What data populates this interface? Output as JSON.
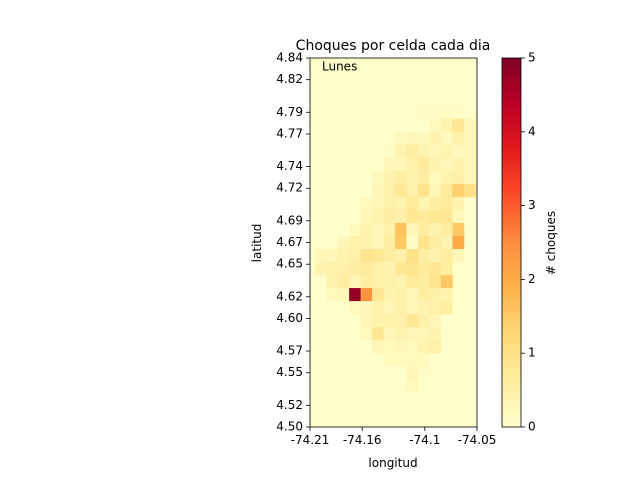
{
  "colors": {
    "background": "#ffffff",
    "colormap": "YlOrRd",
    "colormap_stops": [
      "#ffffcc",
      "#ffeda0",
      "#fed976",
      "#feb24c",
      "#fd8d3c",
      "#fc4e2a",
      "#e31a1c",
      "#bd0026",
      "#800026"
    ]
  },
  "chart_data": {
    "type": "heatmap",
    "title": "Choques por celda cada dia",
    "annotation": "Lunes",
    "xlabel": "longitud",
    "ylabel": "latitud",
    "colorbar_label": "# choques",
    "xlim": [
      -74.21,
      -74.05
    ],
    "ylim": [
      4.5,
      4.84
    ],
    "clim": [
      0,
      5
    ],
    "xtick_values": [
      -74.21,
      -74.16,
      -74.1,
      -74.05
    ],
    "xtick_labels": [
      "-74.21",
      "-74.16",
      "-74.1",
      "-74.05"
    ],
    "ytick_values": [
      4.5,
      4.52,
      4.55,
      4.57,
      4.6,
      4.62,
      4.65,
      4.67,
      4.69,
      4.72,
      4.74,
      4.77,
      4.79,
      4.82,
      4.84
    ],
    "ytick_labels": [
      "4.50",
      "4.52",
      "4.55",
      "4.57",
      "4.60",
      "4.62",
      "4.65",
      "4.67",
      "4.69",
      "4.72",
      "4.74",
      "4.77",
      "4.79",
      "4.82",
      "4.84"
    ],
    "colorbar_tick_values": [
      0,
      1,
      2,
      3,
      4,
      5
    ],
    "colorbar_tick_labels": [
      "0",
      "1",
      "2",
      "3",
      "4",
      "5"
    ],
    "grid": false,
    "cells": [
      [
        -74.101,
        4.79,
        0.1
      ],
      [
        -74.09,
        4.79,
        0.1
      ],
      [
        -74.079,
        4.79,
        0.15
      ],
      [
        -74.068,
        4.79,
        0.1
      ],
      [
        -74.09,
        4.778,
        0.2
      ],
      [
        -74.079,
        4.778,
        0.4
      ],
      [
        -74.068,
        4.778,
        0.8
      ],
      [
        -74.057,
        4.778,
        0.3
      ],
      [
        -74.123,
        4.766,
        0.2
      ],
      [
        -74.112,
        4.766,
        0.3
      ],
      [
        -74.101,
        4.766,
        0.2
      ],
      [
        -74.09,
        4.766,
        0.4
      ],
      [
        -74.079,
        4.766,
        0.2
      ],
      [
        -74.068,
        4.766,
        0.5
      ],
      [
        -74.057,
        4.766,
        0.3
      ],
      [
        -74.134,
        4.754,
        0.1
      ],
      [
        -74.123,
        4.754,
        0.4
      ],
      [
        -74.112,
        4.754,
        0.6
      ],
      [
        -74.101,
        4.754,
        0.4
      ],
      [
        -74.09,
        4.754,
        0.3
      ],
      [
        -74.079,
        4.754,
        0.4
      ],
      [
        -74.068,
        4.754,
        0.2
      ],
      [
        -74.057,
        4.754,
        0.3
      ],
      [
        -74.134,
        4.742,
        0.3
      ],
      [
        -74.123,
        4.742,
        0.3
      ],
      [
        -74.112,
        4.742,
        0.5
      ],
      [
        -74.101,
        4.742,
        0.7
      ],
      [
        -74.09,
        4.742,
        0.4
      ],
      [
        -74.079,
        4.742,
        0.3
      ],
      [
        -74.068,
        4.742,
        0.4
      ],
      [
        -74.057,
        4.742,
        0.3
      ],
      [
        -74.145,
        4.73,
        0.2
      ],
      [
        -74.134,
        4.73,
        0.4
      ],
      [
        -74.123,
        4.73,
        0.6
      ],
      [
        -74.112,
        4.73,
        0.4
      ],
      [
        -74.101,
        4.73,
        0.6
      ],
      [
        -74.09,
        4.73,
        0.2
      ],
      [
        -74.079,
        4.73,
        0.4
      ],
      [
        -74.068,
        4.73,
        0.5
      ],
      [
        -74.057,
        4.73,
        0.3
      ],
      [
        -74.145,
        4.718,
        0.3
      ],
      [
        -74.134,
        4.718,
        0.5
      ],
      [
        -74.123,
        4.718,
        0.8
      ],
      [
        -74.112,
        4.718,
        0.5
      ],
      [
        -74.101,
        4.718,
        0.9
      ],
      [
        -74.09,
        4.718,
        0.3
      ],
      [
        -74.079,
        4.718,
        0.7
      ],
      [
        -74.068,
        4.718,
        1.4
      ],
      [
        -74.057,
        4.718,
        1.0
      ],
      [
        -74.156,
        4.706,
        0.2
      ],
      [
        -74.145,
        4.706,
        0.3
      ],
      [
        -74.134,
        4.706,
        0.5
      ],
      [
        -74.123,
        4.706,
        0.4
      ],
      [
        -74.112,
        4.706,
        0.7
      ],
      [
        -74.101,
        4.706,
        0.4
      ],
      [
        -74.09,
        4.706,
        0.6
      ],
      [
        -74.079,
        4.706,
        0.7
      ],
      [
        -74.068,
        4.706,
        0.4
      ],
      [
        -74.156,
        4.694,
        0.3
      ],
      [
        -74.145,
        4.694,
        0.4
      ],
      [
        -74.134,
        4.694,
        0.6
      ],
      [
        -74.123,
        4.694,
        0.5
      ],
      [
        -74.112,
        4.694,
        0.8
      ],
      [
        -74.101,
        4.694,
        0.7
      ],
      [
        -74.09,
        4.694,
        0.8
      ],
      [
        -74.079,
        4.694,
        0.8
      ],
      [
        -74.068,
        4.694,
        0.2
      ],
      [
        -74.167,
        4.682,
        0.2
      ],
      [
        -74.156,
        4.682,
        0.4
      ],
      [
        -74.145,
        4.682,
        0.3
      ],
      [
        -74.134,
        4.682,
        0.5
      ],
      [
        -74.123,
        4.682,
        1.6
      ],
      [
        -74.112,
        4.682,
        0.3
      ],
      [
        -74.101,
        4.682,
        0.6
      ],
      [
        -74.09,
        4.682,
        0.4
      ],
      [
        -74.079,
        4.682,
        0.6
      ],
      [
        -74.068,
        4.682,
        1.5
      ],
      [
        -74.178,
        4.67,
        0.3
      ],
      [
        -74.167,
        4.67,
        0.5
      ],
      [
        -74.156,
        4.67,
        0.4
      ],
      [
        -74.145,
        4.67,
        0.3
      ],
      [
        -74.134,
        4.67,
        0.6
      ],
      [
        -74.123,
        4.67,
        1.5
      ],
      [
        -74.112,
        4.67,
        0.1
      ],
      [
        -74.101,
        4.67,
        0.9
      ],
      [
        -74.09,
        4.67,
        0.6
      ],
      [
        -74.079,
        4.67,
        0.4
      ],
      [
        -74.068,
        4.67,
        2.0
      ],
      [
        -74.2,
        4.658,
        0.3
      ],
      [
        -74.189,
        4.658,
        0.3
      ],
      [
        -74.178,
        4.658,
        0.4
      ],
      [
        -74.167,
        4.658,
        0.5
      ],
      [
        -74.156,
        4.658,
        0.9
      ],
      [
        -74.145,
        4.658,
        0.8
      ],
      [
        -74.134,
        4.658,
        0.6
      ],
      [
        -74.123,
        4.658,
        0.5
      ],
      [
        -74.112,
        4.658,
        1.0
      ],
      [
        -74.101,
        4.658,
        0.6
      ],
      [
        -74.09,
        4.658,
        0.4
      ],
      [
        -74.079,
        4.658,
        0.6
      ],
      [
        -74.068,
        4.658,
        0.3
      ],
      [
        -74.2,
        4.646,
        0.4
      ],
      [
        -74.189,
        4.646,
        0.5
      ],
      [
        -74.178,
        4.646,
        0.5
      ],
      [
        -74.167,
        4.646,
        0.6
      ],
      [
        -74.156,
        4.646,
        0.7
      ],
      [
        -74.145,
        4.646,
        0.5
      ],
      [
        -74.134,
        4.646,
        0.4
      ],
      [
        -74.123,
        4.646,
        0.8
      ],
      [
        -74.112,
        4.646,
        0.9
      ],
      [
        -74.101,
        4.646,
        0.7
      ],
      [
        -74.09,
        4.646,
        0.8
      ],
      [
        -74.079,
        4.646,
        0.6
      ],
      [
        -74.189,
        4.634,
        0.4
      ],
      [
        -74.178,
        4.634,
        0.6
      ],
      [
        -74.167,
        4.634,
        0.3
      ],
      [
        -74.156,
        4.634,
        0.6
      ],
      [
        -74.145,
        4.634,
        0.5
      ],
      [
        -74.134,
        4.634,
        0.5
      ],
      [
        -74.123,
        4.634,
        0.4
      ],
      [
        -74.112,
        4.634,
        0.7
      ],
      [
        -74.101,
        4.634,
        0.6
      ],
      [
        -74.09,
        4.634,
        0.9
      ],
      [
        -74.079,
        4.634,
        1.5
      ],
      [
        -74.189,
        4.622,
        0.2
      ],
      [
        -74.178,
        4.622,
        0.3
      ],
      [
        -74.167,
        4.622,
        4.8
      ],
      [
        -74.156,
        4.622,
        2.4
      ],
      [
        -74.145,
        4.622,
        0.8
      ],
      [
        -74.134,
        4.622,
        0.4
      ],
      [
        -74.123,
        4.622,
        0.5
      ],
      [
        -74.112,
        4.622,
        0.3
      ],
      [
        -74.101,
        4.622,
        0.6
      ],
      [
        -74.09,
        4.622,
        0.5
      ],
      [
        -74.079,
        4.622,
        0.4
      ],
      [
        -74.167,
        4.61,
        0.2
      ],
      [
        -74.156,
        4.61,
        0.3
      ],
      [
        -74.145,
        4.61,
        0.4
      ],
      [
        -74.134,
        4.61,
        0.3
      ],
      [
        -74.123,
        4.61,
        0.5
      ],
      [
        -74.112,
        4.61,
        0.3
      ],
      [
        -74.101,
        4.61,
        0.4
      ],
      [
        -74.09,
        4.61,
        0.5
      ],
      [
        -74.079,
        4.61,
        0.6
      ],
      [
        -74.156,
        4.598,
        0.3
      ],
      [
        -74.145,
        4.598,
        0.4
      ],
      [
        -74.134,
        4.598,
        0.5
      ],
      [
        -74.123,
        4.598,
        0.5
      ],
      [
        -74.112,
        4.598,
        0.8
      ],
      [
        -74.101,
        4.598,
        0.5
      ],
      [
        -74.09,
        4.598,
        0.3
      ],
      [
        -74.156,
        4.586,
        0.2
      ],
      [
        -74.145,
        4.586,
        0.8
      ],
      [
        -74.134,
        4.586,
        0.3
      ],
      [
        -74.123,
        4.586,
        0.4
      ],
      [
        -74.112,
        4.586,
        0.3
      ],
      [
        -74.101,
        4.586,
        0.3
      ],
      [
        -74.09,
        4.586,
        0.4
      ],
      [
        -74.145,
        4.574,
        0.3
      ],
      [
        -74.134,
        4.574,
        0.2
      ],
      [
        -74.123,
        4.574,
        0.3
      ],
      [
        -74.112,
        4.574,
        0.2
      ],
      [
        -74.101,
        4.574,
        0.4
      ],
      [
        -74.09,
        4.574,
        0.5
      ],
      [
        -74.134,
        4.562,
        0.2
      ],
      [
        -74.123,
        4.562,
        0.2
      ],
      [
        -74.112,
        4.562,
        0.2
      ],
      [
        -74.101,
        4.562,
        0.2
      ],
      [
        -74.112,
        4.55,
        0.3
      ],
      [
        -74.101,
        4.55,
        0.1
      ],
      [
        -74.112,
        4.538,
        0.2
      ]
    ]
  }
}
